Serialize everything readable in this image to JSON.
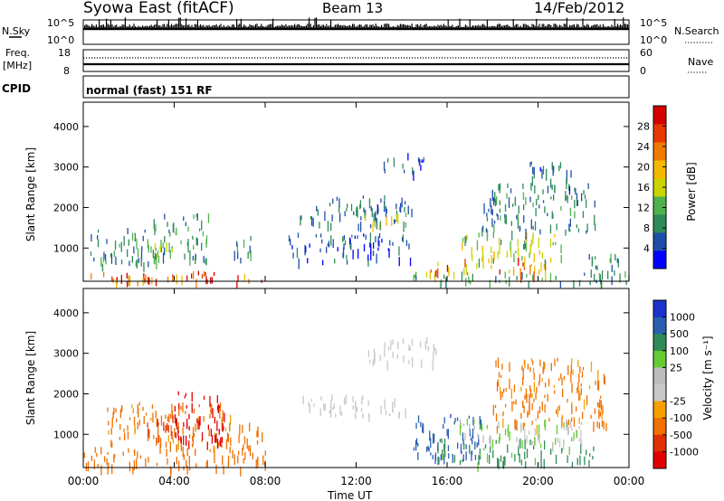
{
  "header": {
    "station": "Syowa East (fitACF)",
    "beam": "Beam 13",
    "date": "14/Feb/2012"
  },
  "status_panels": {
    "nsky_label": "N.Sky",
    "nsearch_label": "N.Search",
    "noise_ticks": [
      "10^5",
      "10^0"
    ],
    "freq_label_1": "Freq.",
    "freq_label_2": "[MHz]",
    "freq_ticks": [
      "18",
      "8"
    ],
    "nave_label": "Nave",
    "nave_ticks": [
      "60",
      "0"
    ],
    "cpid_label": "CPID",
    "cpid_text": "normal (fast) 151 RF"
  },
  "colors": {
    "power_scale": [
      "#0000ff",
      "#1f4fa8",
      "#2e8b57",
      "#4fb24f",
      "#c9d400",
      "#f5b800",
      "#f07a00",
      "#e83800",
      "#d40000"
    ],
    "velocity_scale": [
      "#1a33cc",
      "#2a5fb0",
      "#2e8b57",
      "#66cc33",
      "#bdbdbd",
      "#c8c8c8",
      "#f5a000",
      "#f07000",
      "#e03000",
      "#e00000"
    ],
    "ground_scatter": "#c0c0c0"
  },
  "chart_data": [
    {
      "type": "heatmap",
      "name": "power",
      "xlabel": "Time UT",
      "ylabel": "Slant Range [km]",
      "x_tick_labels": [
        "00:00",
        "04:00",
        "08:00",
        "12:00",
        "16:00",
        "20:00",
        "00:00"
      ],
      "x_range_hours": [
        0,
        24
      ],
      "y_ticks": [
        1000,
        2000,
        3000,
        4000
      ],
      "ylim": [
        180,
        4600
      ],
      "colorbar_label": "Power [dB]",
      "colorbar_ticks": [
        4,
        8,
        12,
        16,
        20,
        24,
        28
      ],
      "colorbar_range": [
        0,
        32
      ],
      "regions": [
        {
          "t0": 0.0,
          "t1": 8.2,
          "r0": 180,
          "r1": 420,
          "value": 27
        },
        {
          "t0": 4.2,
          "t1": 6.0,
          "r0": 200,
          "r1": 450,
          "value": 29
        },
        {
          "t0": 0.3,
          "t1": 3.2,
          "r0": 600,
          "r1": 1500,
          "value": 9
        },
        {
          "t0": 3.0,
          "t1": 5.5,
          "r0": 700,
          "r1": 1900,
          "value": 10
        },
        {
          "t0": 2.8,
          "t1": 4.2,
          "r0": 800,
          "r1": 1200,
          "value": 14
        },
        {
          "t0": 6.6,
          "t1": 7.5,
          "r0": 700,
          "r1": 1300,
          "value": 9
        },
        {
          "t0": 9.5,
          "t1": 14.5,
          "r0": 1550,
          "r1": 2050,
          "value": 7
        },
        {
          "t0": 12.3,
          "t1": 14.3,
          "r0": 1600,
          "r1": 1900,
          "value": 16
        },
        {
          "t0": 10.5,
          "t1": 14.3,
          "r0": 2000,
          "r1": 2350,
          "value": 6
        },
        {
          "t0": 13.2,
          "t1": 15.2,
          "r0": 2900,
          "r1": 3350,
          "value": 6
        },
        {
          "t0": 9.0,
          "t1": 14.5,
          "r0": 700,
          "r1": 1400,
          "value": 5
        },
        {
          "t0": 14.5,
          "t1": 22.8,
          "r0": 180,
          "r1": 420,
          "value": 11
        },
        {
          "t0": 15.0,
          "t1": 20.5,
          "r0": 400,
          "r1": 800,
          "value": 22
        },
        {
          "t0": 16.5,
          "t1": 21.0,
          "r0": 700,
          "r1": 1400,
          "value": 15
        },
        {
          "t0": 17.5,
          "t1": 22.5,
          "r0": 1400,
          "r1": 2600,
          "value": 8
        },
        {
          "t0": 19.5,
          "t1": 21.5,
          "r0": 2500,
          "r1": 3200,
          "value": 6
        },
        {
          "t0": 22.0,
          "t1": 24.0,
          "r0": 180,
          "r1": 900,
          "value": 9
        }
      ]
    },
    {
      "type": "heatmap",
      "name": "velocity",
      "xlabel": "Time UT",
      "ylabel": "Slant Range [km]",
      "x_tick_labels": [
        "00:00",
        "04:00",
        "08:00",
        "12:00",
        "16:00",
        "20:00",
        "00:00"
      ],
      "x_range_hours": [
        0,
        24
      ],
      "y_ticks": [
        1000,
        2000,
        3000,
        4000
      ],
      "ylim": [
        180,
        4600
      ],
      "colorbar_label": "Velocity [m s⁻¹]",
      "colorbar_ticks": [
        "1000",
        "500",
        "100",
        "25",
        "-25",
        "-100",
        "-500",
        "-1000"
      ],
      "regions": [
        {
          "t0": 0.0,
          "t1": 8.0,
          "r0": 180,
          "r1": 700,
          "value": -150
        },
        {
          "t0": 1.0,
          "t1": 6.5,
          "r0": 700,
          "r1": 1800,
          "value": -120
        },
        {
          "t0": 2.8,
          "t1": 4.2,
          "r0": 900,
          "r1": 1500,
          "value": -400
        },
        {
          "t0": 4.0,
          "t1": 6.2,
          "r0": 800,
          "r1": 2100,
          "value": -700
        },
        {
          "t0": 6.8,
          "t1": 8.0,
          "r0": 700,
          "r1": 1300,
          "value": -150
        },
        {
          "t0": 9.5,
          "t1": 14.5,
          "r0": 1500,
          "r1": 2000,
          "value": 0
        },
        {
          "t0": 12.5,
          "t1": 15.5,
          "r0": 2800,
          "r1": 3400,
          "value": 0
        },
        {
          "t0": 14.5,
          "t1": 17.5,
          "r0": 400,
          "r1": 1500,
          "value": 800
        },
        {
          "t0": 15.5,
          "t1": 22.5,
          "r0": 300,
          "r1": 900,
          "value": 300
        },
        {
          "t0": 16.5,
          "t1": 22.0,
          "r0": 900,
          "r1": 1400,
          "value": 100
        },
        {
          "t0": 18.0,
          "t1": 23.0,
          "r0": 1200,
          "r1": 2900,
          "value": -120
        },
        {
          "t0": 19.0,
          "t1": 22.0,
          "r0": 800,
          "r1": 1200,
          "value": 0
        }
      ]
    }
  ]
}
